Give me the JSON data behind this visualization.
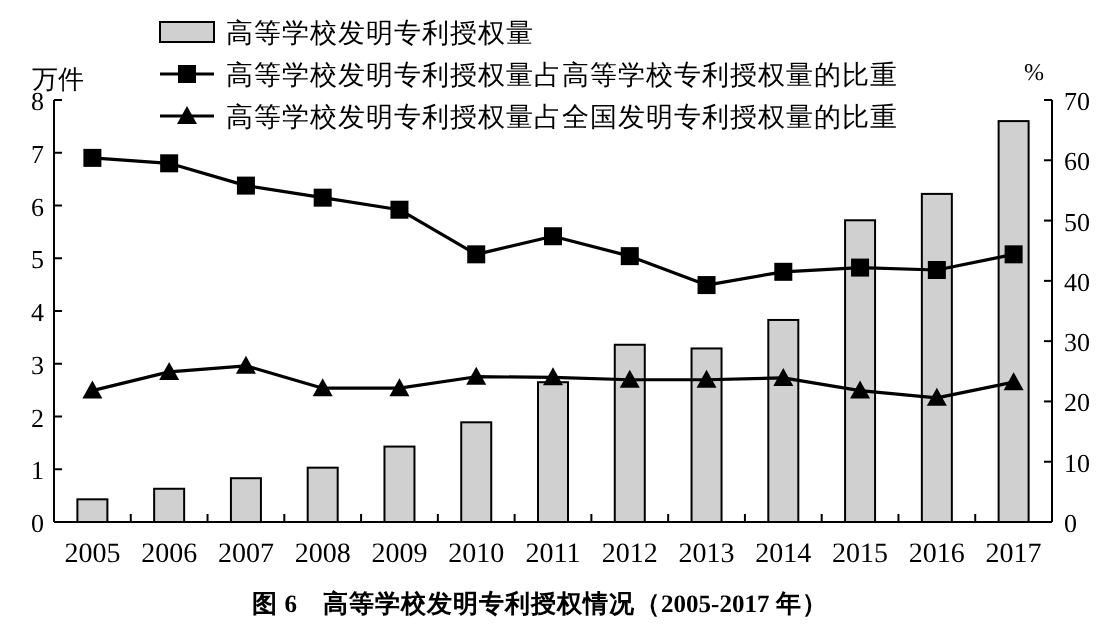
{
  "chart_data": {
    "type": "bar",
    "categories": [
      "2005",
      "2006",
      "2007",
      "2008",
      "2009",
      "2010",
      "2011",
      "2012",
      "2013",
      "2014",
      "2015",
      "2016",
      "2017"
    ],
    "series": [
      {
        "name": "高等学校发明专利授权量",
        "color": "#d0d0d0",
        "values": [
          0.43,
          0.63,
          0.83,
          1.03,
          1.43,
          1.89,
          2.65,
          3.36,
          3.29,
          3.83,
          5.72,
          6.22,
          7.6
        ]
      },
      {
        "name": "高等学校发明专利授权量占高等学校专利授权量的比重",
        "type": "line",
        "axis": "y2",
        "marker": "square",
        "color": "#000000",
        "values": [
          60.4,
          59.5,
          55.8,
          53.8,
          51.8,
          44.4,
          47.4,
          44.1,
          39.3,
          41.5,
          42.2,
          41.8,
          44.4
        ]
      },
      {
        "name": "高等学校发明专利授权量占全国发明专利授权量的比重",
        "type": "line",
        "axis": "y2",
        "marker": "triangle",
        "color": "#000000",
        "values": [
          21.8,
          24.9,
          25.9,
          22.2,
          22.2,
          24.1,
          24.0,
          23.6,
          23.6,
          23.9,
          21.8,
          20.6,
          23.2
        ]
      }
    ],
    "ylabel": "万件",
    "y2label": "%",
    "ylim": [
      0,
      8
    ],
    "yticks": [
      0,
      1,
      2,
      3,
      4,
      5,
      6,
      7,
      8
    ],
    "y2lim": [
      0,
      70
    ],
    "y2ticks": [
      0,
      10,
      20,
      30,
      40,
      50,
      60,
      70
    ],
    "legend": "top",
    "annotations": [
      "图 6　高等学校发明专利授权情况（2005-2017 年）"
    ]
  }
}
